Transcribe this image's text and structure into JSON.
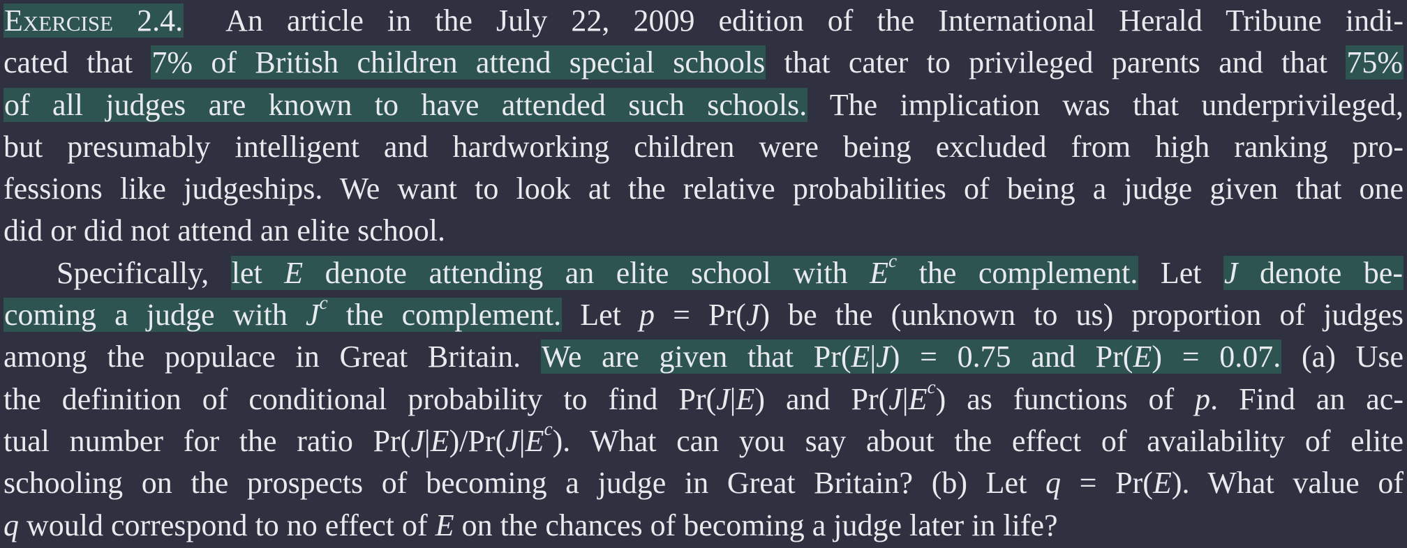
{
  "heading": "Exercise 2.4.",
  "highlight_color": "#2d5451",
  "background_color": "#2f3040",
  "lines": {
    "l1_rest": "An article in the July 22, 2009 edition of the International Herald Tribune indi-",
    "l2_a": "cated that ",
    "l2_hl": "7% of British children attend special schools",
    "l2_b": " that cater to privileged parents and that ",
    "l2_hl2": "75%",
    "l3_hl": "of all judges are known to have attended such schools.",
    "l3_b": " The implication was that underprivileged,",
    "l4": "but presumably intelligent and hardworking children were being excluded from high ranking pro-",
    "l5": "fessions like judgeships. We want to look at the relative probabilities of being a judge given that one",
    "l6": "did or did not attend an elite school.",
    "l7_a": "Specifically, ",
    "l7_hl_a": "let ",
    "l7_E": "E",
    "l7_hl_b": " denote attending an elite school with ",
    "l7_Ec": "E",
    "l7_c": "c",
    "l7_hl_c": " the complement.",
    "l7_b": " Let ",
    "l7_hl2_J": "J",
    "l7_hl2": " denote be-",
    "l8_hl_a": "coming a judge with ",
    "l8_J": "J",
    "l8_c": "c",
    "l8_hl_b": " the complement.",
    "l8_b": " Let ",
    "l8_p": "p",
    "l8_c2": " = Pr(",
    "l8_J2": "J",
    "l8_d": ") be the (unknown to us) proportion of judges",
    "l9_a": "among the populace in Great Britain. ",
    "l9_hl_a": "We are given that Pr(",
    "l9_E": "E",
    "l9_bar": "|",
    "l9_J": "J",
    "l9_hl_b": ") = 0.75 and Pr(",
    "l9_E2": "E",
    "l9_hl_c": ") = 0.07.",
    "l9_b": " (a) Use",
    "l10_a": "the definition of conditional probability to find Pr(",
    "l10_J": "J",
    "l10_bar": "|",
    "l10_E": "E",
    "l10_b": ") and Pr(",
    "l10_J2": "J",
    "l10_bar2": "|",
    "l10_E2": "E",
    "l10_c": "c",
    "l10_d": ") as functions of ",
    "l10_p": "p",
    "l10_e": ". Find an ac-",
    "l11_a": "tual number for the ratio Pr(",
    "l11_J": "J",
    "l11_bar": "|",
    "l11_E": "E",
    "l11_b": ")/Pr(",
    "l11_J2": "J",
    "l11_bar2": "|",
    "l11_E2": "E",
    "l11_c": "c",
    "l11_d": "). What can you say about the effect of availability of elite",
    "l12_a": "schooling on the prospects of becoming a judge in Great Britain? (b) Let ",
    "l12_q": "q",
    "l12_b": " = Pr(",
    "l12_E": "E",
    "l12_c": "). What value of",
    "l13_q": "q",
    "l13_a": " would correspond to no effect of ",
    "l13_E": "E",
    "l13_b": " on the chances of becoming a judge later in life?"
  }
}
